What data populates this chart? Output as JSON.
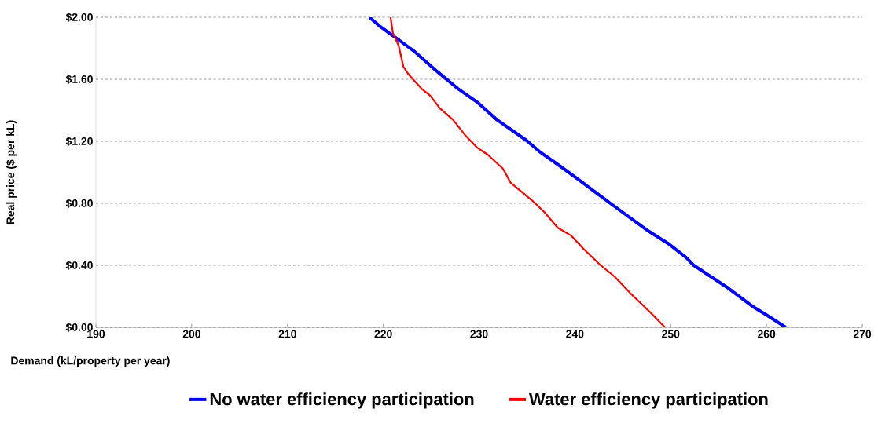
{
  "chart_data": {
    "type": "line",
    "xlabel": "Demand (kL/property per year)",
    "ylabel": "Real price ($ per kL)",
    "xlim": [
      190,
      270
    ],
    "xticks": [
      190,
      200,
      210,
      220,
      230,
      240,
      250,
      260,
      270
    ],
    "ylim": [
      0,
      2
    ],
    "yticks": [
      {
        "value": 0,
        "label": "$0.00"
      },
      {
        "value": 0.4,
        "label": "$0.40"
      },
      {
        "value": 0.8,
        "label": "$0.80"
      },
      {
        "value": 1.2,
        "label": "$1.20"
      },
      {
        "value": 1.6,
        "label": "$1.60"
      },
      {
        "value": 2,
        "label": "$2.00"
      }
    ],
    "grid": "y",
    "legend": "bottom",
    "marker": "none",
    "line_style": "solid",
    "series": [
      {
        "name": "No water efficiency participation",
        "color": "#0000ff",
        "x": [
          218.55,
          219.6,
          221.3,
          223.2,
          225.7,
          227.8,
          229.8,
          231.9,
          234.96,
          236.3,
          238.5,
          240.5,
          243.7,
          247.5,
          249.7,
          251.6,
          252.4,
          256.0,
          258.5,
          260.1,
          262.0
        ],
        "values": [
          2.0,
          1.944,
          1.868,
          1.782,
          1.646,
          1.539,
          1.453,
          1.337,
          1.205,
          1.134,
          1.038,
          0.947,
          0.8,
          0.628,
          0.542,
          0.451,
          0.4,
          0.253,
          0.137,
          0.076,
          0.0
        ]
      },
      {
        "name": "Water efficiency participation",
        "color": "#ff0000",
        "x": [
          220.76,
          221.0,
          221.6,
          222.1,
          222.65,
          224.0,
          224.9,
          225.9,
          227.3,
          228.6,
          229.8,
          230.9,
          232.5,
          233.3,
          235.5,
          236.8,
          238.2,
          239.6,
          240.9,
          242.6,
          244.2,
          245.9,
          247.8,
          249.4
        ],
        "values": [
          2.0,
          1.899,
          1.818,
          1.681,
          1.63,
          1.539,
          1.494,
          1.413,
          1.337,
          1.235,
          1.159,
          1.114,
          1.023,
          0.932,
          0.82,
          0.744,
          0.643,
          0.592,
          0.506,
          0.405,
          0.324,
          0.213,
          0.101,
          0.0
        ]
      }
    ]
  }
}
